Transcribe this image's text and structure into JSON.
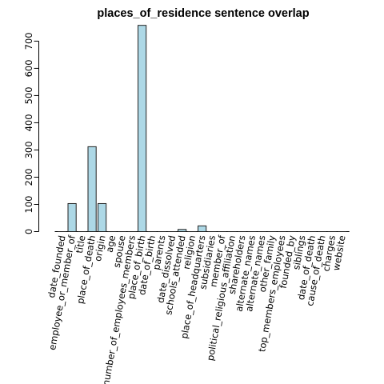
{
  "chart_data": {
    "type": "bar",
    "title": "places_of_residence sentence overlap",
    "xlabel": "",
    "ylabel": "",
    "ylim": [
      0,
      760
    ],
    "yticks": [
      0,
      100,
      200,
      300,
      400,
      500,
      600,
      700
    ],
    "grid": false,
    "bar_color": "#add8e6",
    "bar_border_color": "#222222",
    "categories": [
      "date_founded",
      "employee_or_member_of",
      "title",
      "place_of_death",
      "origin",
      "age",
      "spouse",
      "number_of_employees_members",
      "place_of_birth",
      "date_of_birth",
      "parents",
      "date_dissolved",
      "schools_attended",
      "religion",
      "place_of_headquarters",
      "subsidiaries",
      "member_of",
      "political_religious_affiliation",
      "shareholders",
      "alternate_names",
      "alternate_names",
      "other_family",
      "top_members_employees",
      "founded_by",
      "siblings",
      "date_of_death",
      "cause_of_death",
      "charges",
      "website"
    ],
    "values": [
      0,
      103,
      0,
      312,
      103,
      0,
      0,
      0,
      758,
      0,
      0,
      0,
      8,
      0,
      21,
      0,
      0,
      0,
      0,
      0,
      0,
      0,
      0,
      0,
      0,
      0,
      0,
      0,
      0
    ]
  }
}
